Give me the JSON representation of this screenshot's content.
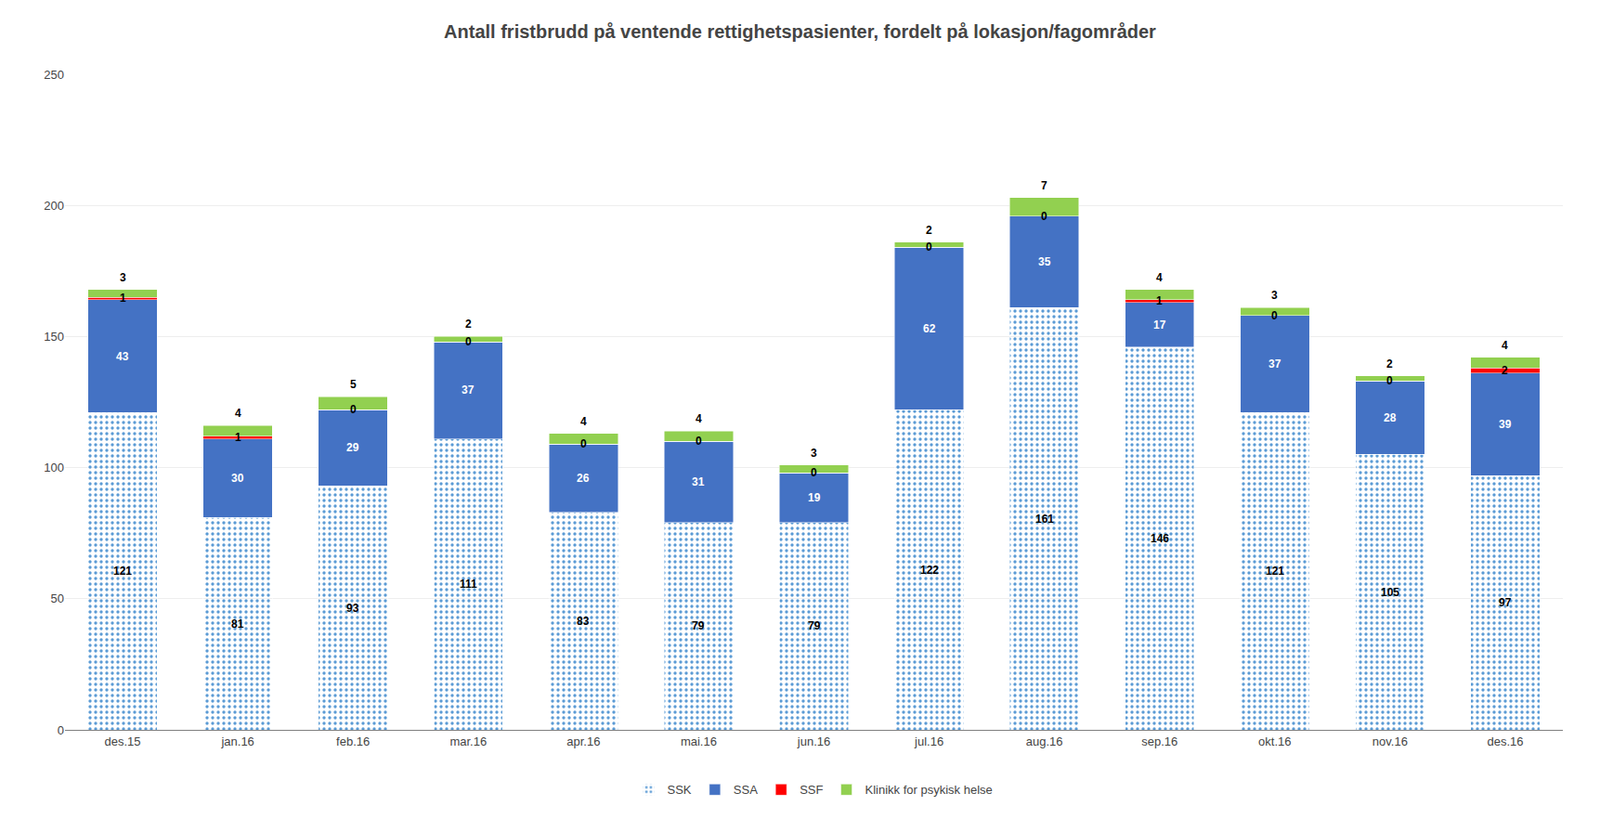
{
  "chart_data": {
    "type": "bar",
    "title": "Antall fristbrudd på ventende rettighetspasienter, fordelt på lokasjon/fagområder",
    "categories": [
      "des.15",
      "jan.16",
      "feb.16",
      "mar.16",
      "apr.16",
      "mai.16",
      "jun.16",
      "jul.16",
      "aug.16",
      "sep.16",
      "okt.16",
      "nov.16",
      "des.16"
    ],
    "series": [
      {
        "name": "SSK",
        "color": "#9DC3E6",
        "values": [
          121,
          81,
          93,
          111,
          83,
          79,
          79,
          122,
          161,
          146,
          121,
          105,
          97
        ]
      },
      {
        "name": "SSA",
        "color": "#4472C4",
        "values": [
          43,
          30,
          29,
          37,
          26,
          31,
          19,
          62,
          35,
          17,
          37,
          28,
          39
        ]
      },
      {
        "name": "SSF",
        "color": "#FF0000",
        "values": [
          1,
          1,
          0,
          0,
          0,
          0,
          0,
          0,
          0,
          1,
          0,
          0,
          2
        ]
      },
      {
        "name": "Klinikk for psykisk helse",
        "color": "#92D050",
        "values": [
          3,
          4,
          5,
          2,
          4,
          4,
          3,
          2,
          7,
          4,
          3,
          2,
          4
        ]
      }
    ],
    "stacked": true,
    "data_labels": true,
    "ylim": [
      0,
      250
    ],
    "yticks": [
      0,
      50,
      100,
      150,
      200,
      250
    ],
    "grid": true,
    "legend": "bottom"
  }
}
